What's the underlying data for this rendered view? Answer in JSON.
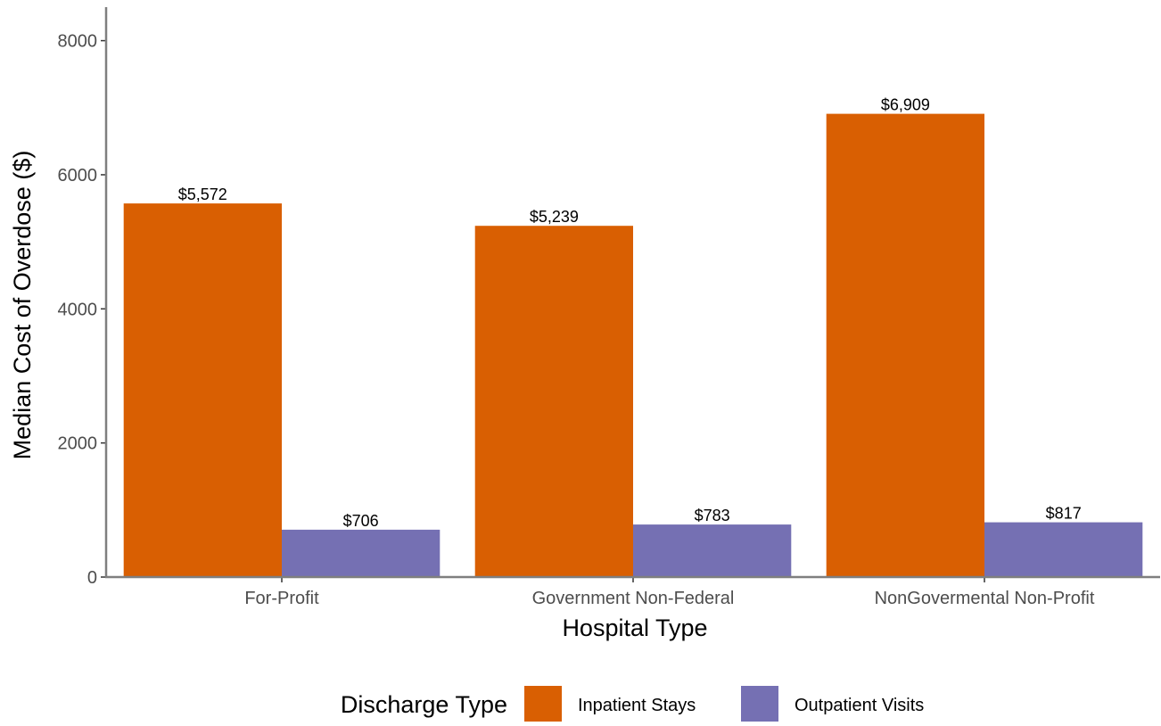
{
  "chart_data": {
    "type": "bar",
    "xlabel": "Hospital Type",
    "ylabel": "Median Cost of Overdose ($)",
    "categories": [
      "For-Profit",
      "Government Non-Federal",
      "NonGovermental Non-Profit"
    ],
    "series": [
      {
        "name": "Inpatient Stays",
        "color": "#D95F02",
        "values": [
          5572,
          5239,
          6909
        ],
        "labels": [
          "$5,572",
          "$5,239",
          "$6,909"
        ]
      },
      {
        "name": "Outpatient Visits",
        "color": "#7570B3",
        "values": [
          706,
          783,
          817
        ],
        "labels": [
          "$706",
          "$783",
          "$817"
        ]
      }
    ],
    "ylim": [
      0,
      8500
    ],
    "yticks": [
      0,
      2000,
      4000,
      6000,
      8000
    ],
    "ytick_labels": [
      "0",
      "2000",
      "4000",
      "6000",
      "8000"
    ],
    "grid": false,
    "legend": {
      "title": "Discharge Type",
      "position": "bottom"
    }
  }
}
